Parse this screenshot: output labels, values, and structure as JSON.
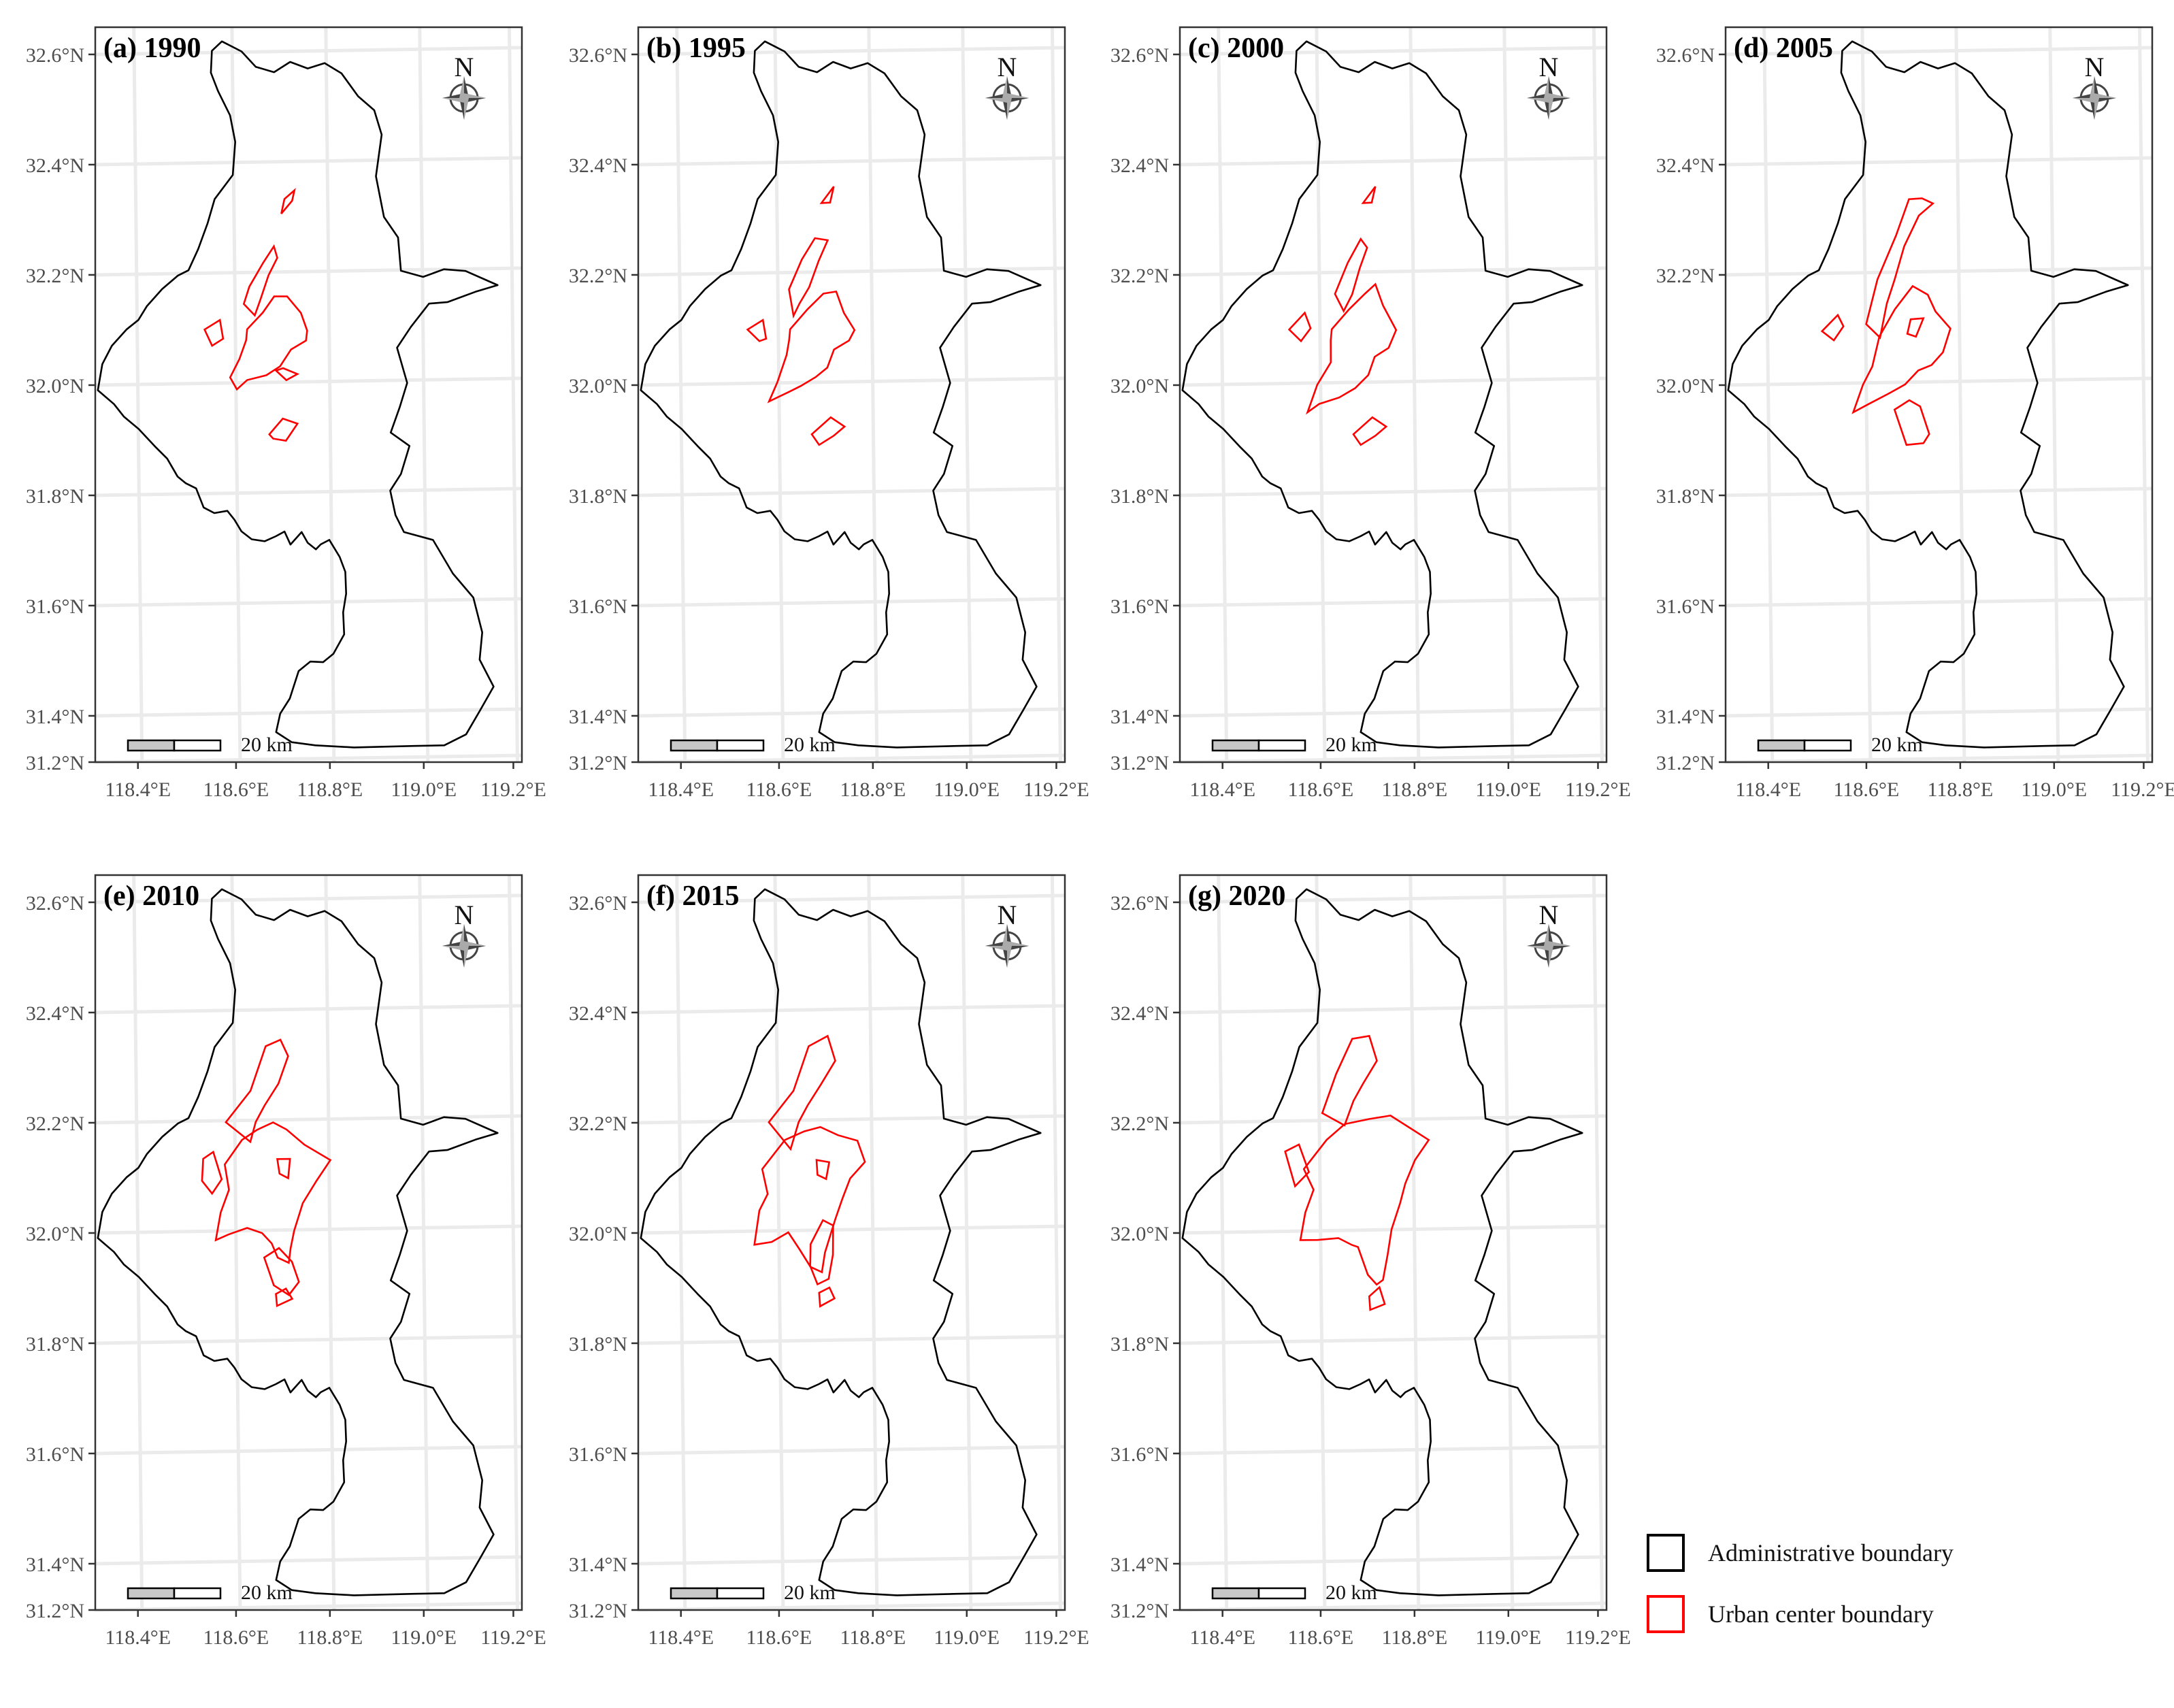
{
  "panels": [
    {
      "title": "(a) 1990"
    },
    {
      "title": "(b) 1995"
    },
    {
      "title": "(c) 2000"
    },
    {
      "title": "(d) 2005"
    },
    {
      "title": "(e) 2010"
    },
    {
      "title": "(f) 2015"
    },
    {
      "title": "(g) 2020"
    }
  ],
  "y_ticks": [
    "32.6°N",
    "32.4°N",
    "32.2°N",
    "32.0°N",
    "31.8°N",
    "31.6°N",
    "31.4°N",
    "31.2°N"
  ],
  "x_ticks": [
    "118.4°E",
    "118.6°E",
    "118.8°E",
    "119.0°E",
    "119.2°E"
  ],
  "north_label": "N",
  "scale_bar_label": "20 km",
  "legend": [
    {
      "label": "Administrative boundary",
      "color": "#000000"
    },
    {
      "label": "Urban center boundary",
      "color": "#ff0000"
    }
  ],
  "colors": {
    "admin_boundary": "#000000",
    "urban_boundary": "#ff0000",
    "graticule": "#ebebeb",
    "compass_dark": "#444444",
    "compass_light": "#aaaaaa",
    "scale_fill": "#c8c8c8"
  }
}
